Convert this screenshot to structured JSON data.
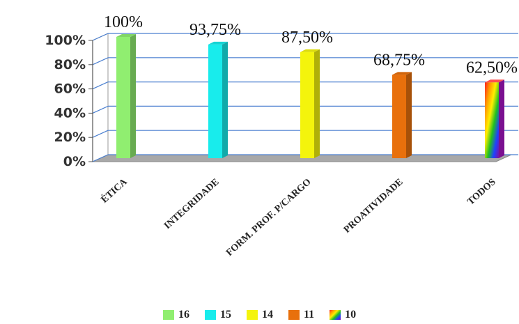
{
  "chart_data": {
    "type": "bar",
    "title": "",
    "xlabel": "",
    "ylabel": "",
    "ylim": [
      0,
      100
    ],
    "yticks": [
      "0%",
      "20%",
      "40%",
      "60%",
      "80%",
      "100%"
    ],
    "grid": true,
    "legend_position": "bottom",
    "categories": [
      "Ética",
      "Integridade",
      "Form. Prof. p/Cargo",
      "Proatividade",
      "Todos"
    ],
    "values": [
      100,
      93.75,
      87.5,
      68.75,
      62.5
    ],
    "value_labels": [
      "100%",
      "93,75%",
      "87,50%",
      "68,75%",
      "62,50%"
    ],
    "legend": [
      "16",
      "15",
      "14",
      "11",
      "10"
    ],
    "colors": [
      "#90ee70",
      "#18ecec",
      "#f4f40c",
      "#e8700c",
      "rainbow"
    ]
  }
}
